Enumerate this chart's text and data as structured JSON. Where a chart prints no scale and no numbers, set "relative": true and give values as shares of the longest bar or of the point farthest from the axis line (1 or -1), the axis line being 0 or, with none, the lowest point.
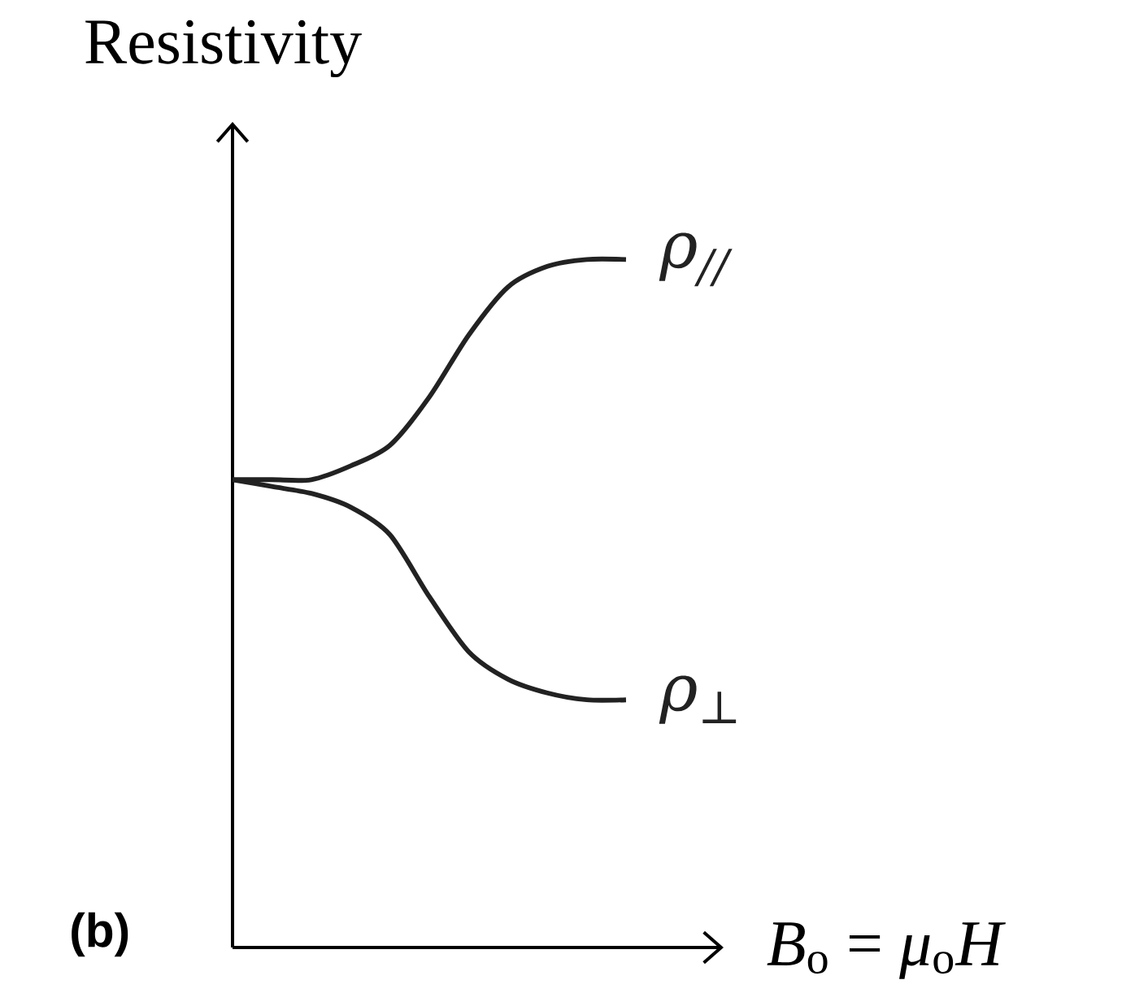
{
  "chart_data": {
    "type": "line",
    "relative": true,
    "ylabel": "Resistivity",
    "xlabel": "*B*$_{o}$ = *μ*$_{o}$*H*",
    "annotations": [
      "(b)"
    ],
    "categories": [
      null,
      null,
      null,
      null,
      null,
      null,
      null,
      null,
      null,
      null,
      null
    ],
    "series": [
      {
        "name": "ρ$_{//}$",
        "color": "#222222",
        "values": [
          0.68,
          0.68,
          0.68,
          0.7,
          0.73,
          0.8,
          0.89,
          0.96,
          0.99,
          1.0,
          1.0
        ]
      },
      {
        "name": "ρ$_{⊥}$",
        "color": "#222222",
        "values": [
          0.68,
          0.67,
          0.66,
          0.64,
          0.6,
          0.51,
          0.43,
          0.39,
          0.37,
          0.36,
          0.36
        ]
      }
    ]
  }
}
